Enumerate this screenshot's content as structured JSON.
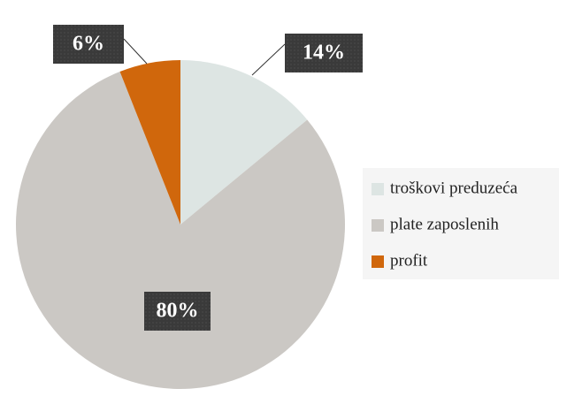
{
  "chart_data": {
    "type": "pie",
    "categories": [
      "troškovi preduzeća",
      "plate zaposlenih",
      "profit"
    ],
    "values": [
      14,
      80,
      6
    ],
    "value_labels": [
      "14%",
      "80%",
      "6%"
    ],
    "colors": [
      "#dde5e3",
      "#cbc8c4",
      "#d0670c"
    ],
    "legend": "right"
  }
}
